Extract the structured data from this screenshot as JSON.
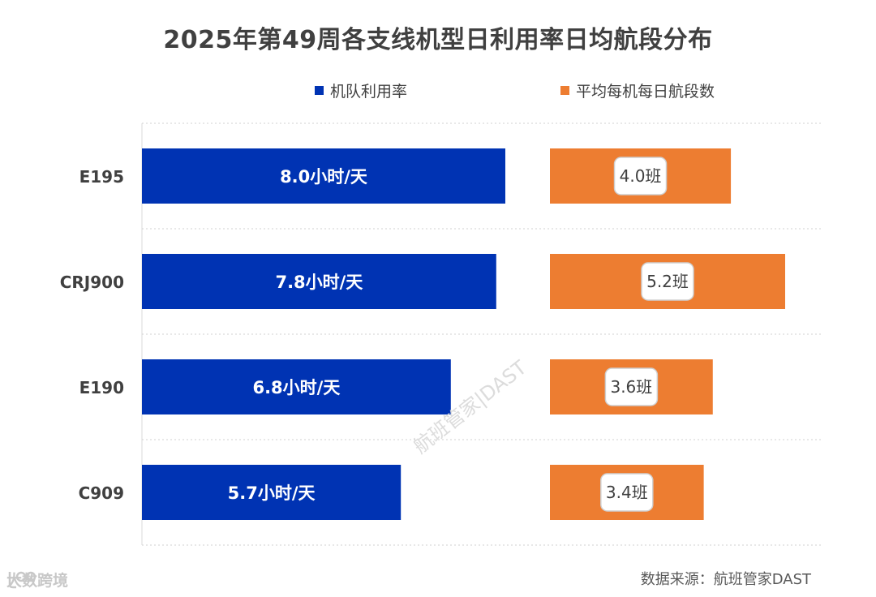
{
  "title": "2025年第49周各支线机型日利用率日均航段分布",
  "legend": [
    {
      "label": "机队利用率",
      "color": "#0033b3"
    },
    {
      "label": "平均每机每日航段数",
      "color": "#ed7d31"
    }
  ],
  "source": {
    "prefix": "数据来源：",
    "name": "航班管家DAST"
  },
  "watermark": "航班管家|DAST",
  "logo": {
    "text": "大数跨境",
    "icon": "brand-logo-icon"
  },
  "chart_data": {
    "type": "bar",
    "orientation": "horizontal",
    "categories": [
      "E195",
      "CRJ900",
      "E190",
      "C909"
    ],
    "series": [
      {
        "name": "机队利用率",
        "values": [
          8.0,
          7.8,
          6.8,
          5.7
        ],
        "value_labels": [
          "8.0小时/天",
          "7.8小时/天",
          "6.8小时/天",
          "5.7小时/天"
        ],
        "color": "#0033b3"
      },
      {
        "name": "平均每机每日航段数",
        "values": [
          4.0,
          5.2,
          3.6,
          3.4
        ],
        "value_labels": [
          "4.0班",
          "5.2班",
          "3.6班",
          "3.4班"
        ],
        "color": "#ed7d31"
      }
    ],
    "grid": true,
    "legend_position": "top"
  }
}
